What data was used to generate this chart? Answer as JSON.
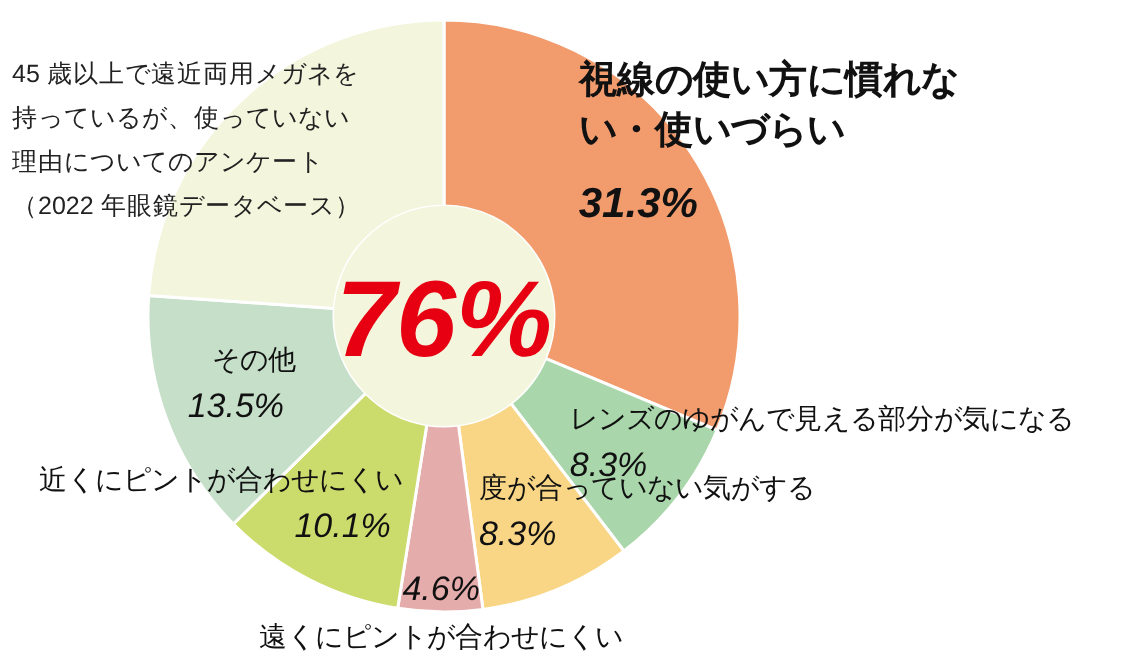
{
  "chart_data": {
    "type": "donut",
    "title": "45 歳以上で遠近両用メガネを持っているが、使っていない理由についてのアンケート（2022 年眼鏡データベース）",
    "categories": [
      "視線の使い方に慣れない・使いづらい",
      "レンズのゆがんで見える部分が気になる",
      "度が合っていない気がする",
      "遠くにピントが合わせにくい",
      "近くにピントが合わせにくい",
      "その他",
      null
    ],
    "values": [
      31.3,
      8.3,
      8.3,
      4.6,
      10.1,
      13.5,
      23.9
    ],
    "value_labels": [
      "31.3%",
      "8.3%",
      "8.3%",
      "4.6%",
      "10.1%",
      "13.5%",
      null
    ],
    "colors": [
      "#f29c6e",
      "#a9d6ab",
      "#f8d686",
      "#e5acac",
      "#cbdc6c",
      "#c5dfc8",
      "#f3f5dc"
    ],
    "annotations": [
      "76%"
    ],
    "legend": false
  }
}
